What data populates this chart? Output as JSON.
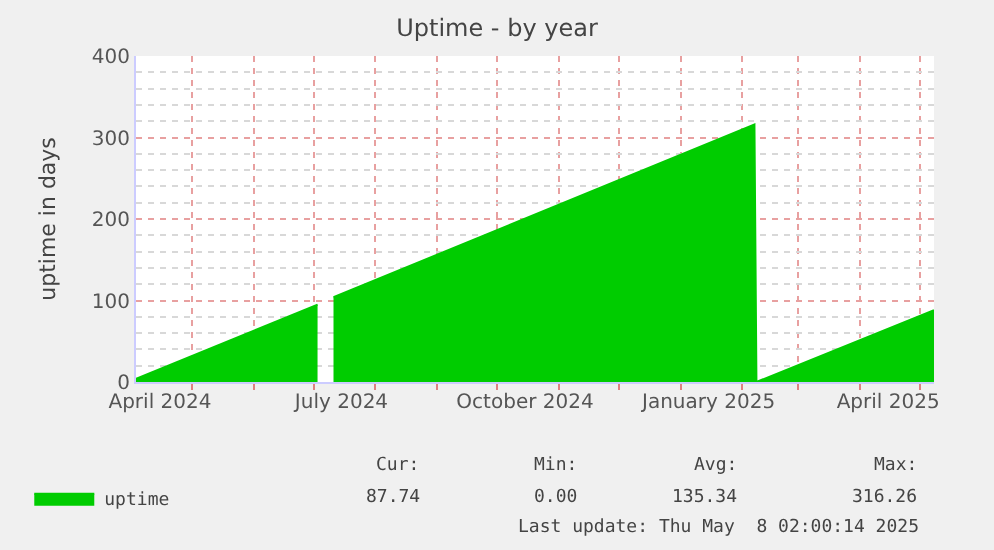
{
  "chart_data": {
    "type": "area",
    "title": "Uptime - by year",
    "ylabel": "uptime in days",
    "series": [
      {
        "name": "uptime",
        "color": "#00cc00",
        "x": [
          "2024-04-03",
          "2024-07-03",
          "2024-07-05",
          "2024-07-11",
          "2025-02-07",
          "2025-02-08",
          "2025-05-08"
        ],
        "values": [
          4,
          95,
          null,
          104,
          316,
          0,
          88
        ]
      }
    ],
    "xlim": [
      "2024-04-03",
      "2025-05-08"
    ],
    "xticks": [
      {
        "value": "2024-04-15",
        "label": "April 2024"
      },
      {
        "value": "2024-07-15",
        "label": "July 2024"
      },
      {
        "value": "2024-10-15",
        "label": "October 2024"
      },
      {
        "value": "2025-01-15",
        "label": "January 2025"
      },
      {
        "value": "2025-04-15",
        "label": "April 2025"
      }
    ],
    "ylim": [
      0,
      400
    ],
    "yticks": [
      0,
      100,
      200,
      300,
      400
    ],
    "grid": true,
    "legend": "bottom left",
    "annotations": [
      "Cur:",
      "87.74",
      "Min:",
      "0.00",
      "Avg:",
      "135.34",
      "Max:",
      "316.26",
      "Last update: Thu May  8 02:00:14 2025"
    ]
  }
}
